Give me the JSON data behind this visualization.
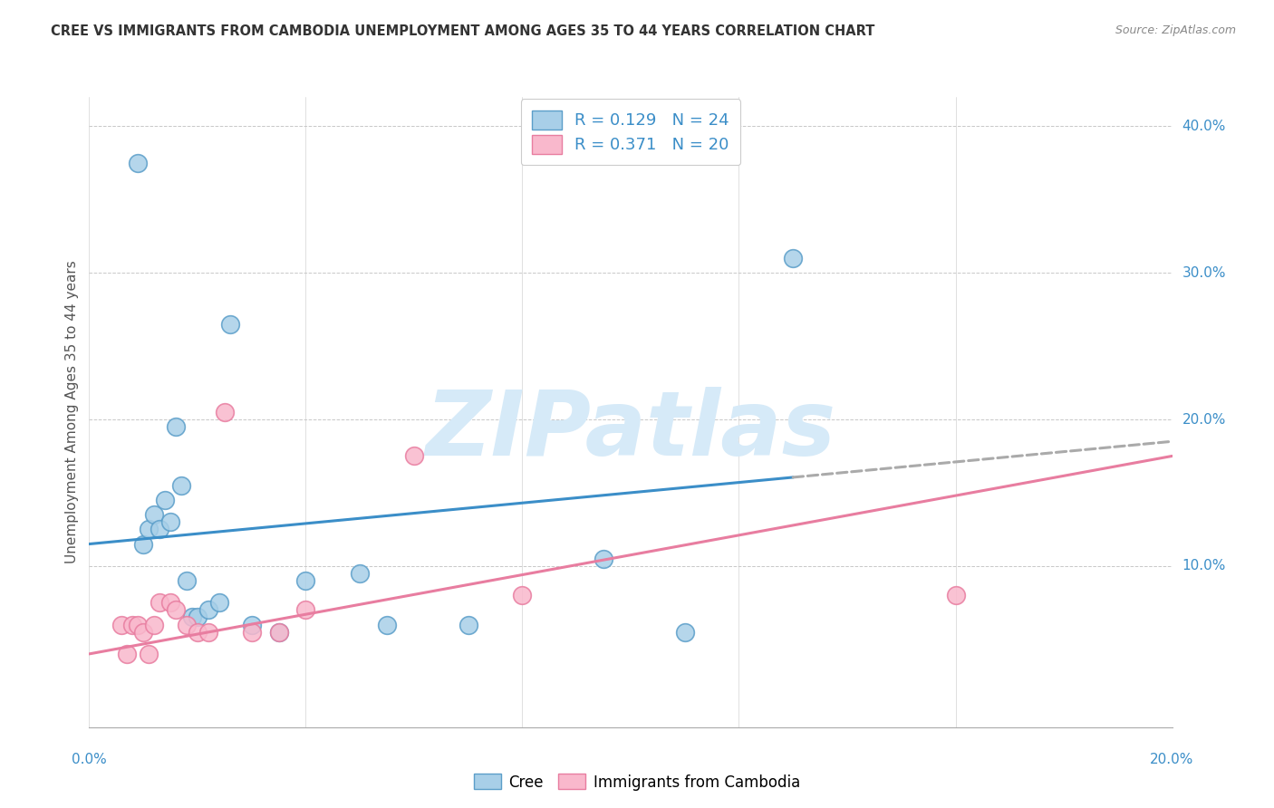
{
  "title": "CREE VS IMMIGRANTS FROM CAMBODIA UNEMPLOYMENT AMONG AGES 35 TO 44 YEARS CORRELATION CHART",
  "source": "Source: ZipAtlas.com",
  "ylabel": "Unemployment Among Ages 35 to 44 years",
  "xlim": [
    0.0,
    0.2
  ],
  "ylim": [
    -0.01,
    0.42
  ],
  "cree_color": "#a8cfe8",
  "cambodia_color": "#f9b8cc",
  "cree_edge": "#5b9ec9",
  "cambodia_edge": "#e87da0",
  "watermark_color": "#d6eaf8",
  "grid_color": "#c8c8c8",
  "cree_x": [
    0.009,
    0.01,
    0.011,
    0.012,
    0.013,
    0.014,
    0.015,
    0.016,
    0.017,
    0.018,
    0.019,
    0.02,
    0.022,
    0.024,
    0.026,
    0.03,
    0.035,
    0.04,
    0.05,
    0.055,
    0.07,
    0.095,
    0.11,
    0.13
  ],
  "cree_y": [
    0.375,
    0.115,
    0.125,
    0.135,
    0.125,
    0.145,
    0.13,
    0.195,
    0.155,
    0.09,
    0.065,
    0.065,
    0.07,
    0.075,
    0.265,
    0.06,
    0.055,
    0.09,
    0.095,
    0.06,
    0.06,
    0.105,
    0.055,
    0.31
  ],
  "cambodia_x": [
    0.006,
    0.007,
    0.008,
    0.009,
    0.01,
    0.011,
    0.012,
    0.013,
    0.015,
    0.016,
    0.018,
    0.02,
    0.022,
    0.025,
    0.03,
    0.035,
    0.04,
    0.06,
    0.08,
    0.16
  ],
  "cambodia_y": [
    0.06,
    0.04,
    0.06,
    0.06,
    0.055,
    0.04,
    0.06,
    0.075,
    0.075,
    0.07,
    0.06,
    0.055,
    0.055,
    0.205,
    0.055,
    0.055,
    0.07,
    0.175,
    0.08,
    0.08
  ],
  "cree_line_x0": 0.0,
  "cree_line_x_solid_end": 0.13,
  "cree_line_x1": 0.2,
  "cree_line_y0": 0.115,
  "cree_line_y1": 0.185,
  "cambodia_line_x0": 0.0,
  "cambodia_line_x1": 0.2,
  "cambodia_line_y0": 0.04,
  "cambodia_line_y1": 0.175,
  "yticks": [
    0.0,
    0.1,
    0.2,
    0.3,
    0.4
  ],
  "ytick_labels": [
    "",
    "10.0%",
    "20.0%",
    "30.0%",
    "40.0%"
  ],
  "xtick_labels": [
    "0.0%",
    "20.0%"
  ],
  "legend_text1": "R = 0.129   N = 24",
  "legend_text2": "R = 0.371   N = 20",
  "bottom_legend_labels": [
    "Cree",
    "Immigrants from Cambodia"
  ],
  "text_color_blue": "#3b8ec8",
  "axis_label_color": "#555555",
  "title_color": "#333333",
  "source_color": "#888888"
}
